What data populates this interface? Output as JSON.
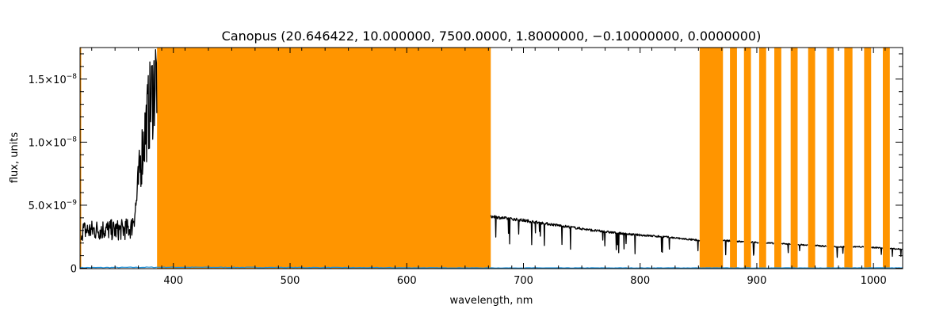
{
  "chart_data": {
    "type": "line",
    "title": "Canopus   (20.646422, 10.000000, 7500.0000, 1.8000000, −0.10000000, 0.0000000)",
    "xlabel": "wavelength, nm",
    "ylabel": "flux, units",
    "xlim": [
      320,
      1025
    ],
    "ylim": [
      -3e-11,
      1.75e-08
    ],
    "x_ticks": [
      400,
      500,
      600,
      700,
      800,
      900,
      1000
    ],
    "x_tick_labels": [
      "400",
      "500",
      "600",
      "700",
      "800",
      "900",
      "1000"
    ],
    "y_ticks": [
      0,
      5e-09,
      1e-08,
      1.5e-08
    ],
    "y_tick_labels": [
      {
        "mantissa": "0",
        "exponent": ""
      },
      {
        "mantissa": "5.0×10",
        "exponent": "−9"
      },
      {
        "mantissa": "1.0×10",
        "exponent": "−8"
      },
      {
        "mantissa": "1.5×10",
        "exponent": "−8"
      }
    ],
    "grid": false,
    "colors": {
      "flux": "#000000",
      "error": "#1f8fd6",
      "masked": "#ff9500",
      "axes": "#000000"
    },
    "masked_regions": [
      [
        320,
        321
      ],
      [
        386,
        672
      ],
      [
        851,
        871
      ],
      [
        877,
        883
      ],
      [
        889,
        895
      ],
      [
        902,
        908
      ],
      [
        915,
        921
      ],
      [
        929,
        935
      ],
      [
        944,
        950
      ],
      [
        960,
        966
      ],
      [
        975,
        982
      ],
      [
        992,
        998
      ],
      [
        1008,
        1014
      ]
    ],
    "series": [
      {
        "role": "flux",
        "x": [
          320,
          330,
          340,
          350,
          360,
          364,
          368,
          372,
          376,
          380,
          385,
          672,
          700,
          730,
          760,
          790,
          820,
          851,
          871,
          890,
          910,
          930,
          950,
          970,
          990,
          1010,
          1025
        ],
        "y": [
          3e-09,
          3e-09,
          3.1e-09,
          3e-09,
          3.1e-09,
          3.2e-09,
          5e-09,
          8.5e-09,
          1.1e-08,
          1.3e-08,
          1.52e-08,
          4.1e-09,
          3.8e-09,
          3.4e-09,
          3e-09,
          2.7e-09,
          2.5e-09,
          2.2e-09,
          2.2e-09,
          2.1e-09,
          2e-09,
          1.9e-09,
          1.8e-09,
          1.7e-09,
          1.7e-09,
          1.6e-09,
          1.5e-09
        ]
      },
      {
        "role": "error",
        "x": [
          320,
          385,
          672,
          1025
        ],
        "y": [
          5e-11,
          8e-11,
          3e-11,
          3e-11
        ]
      }
    ]
  }
}
